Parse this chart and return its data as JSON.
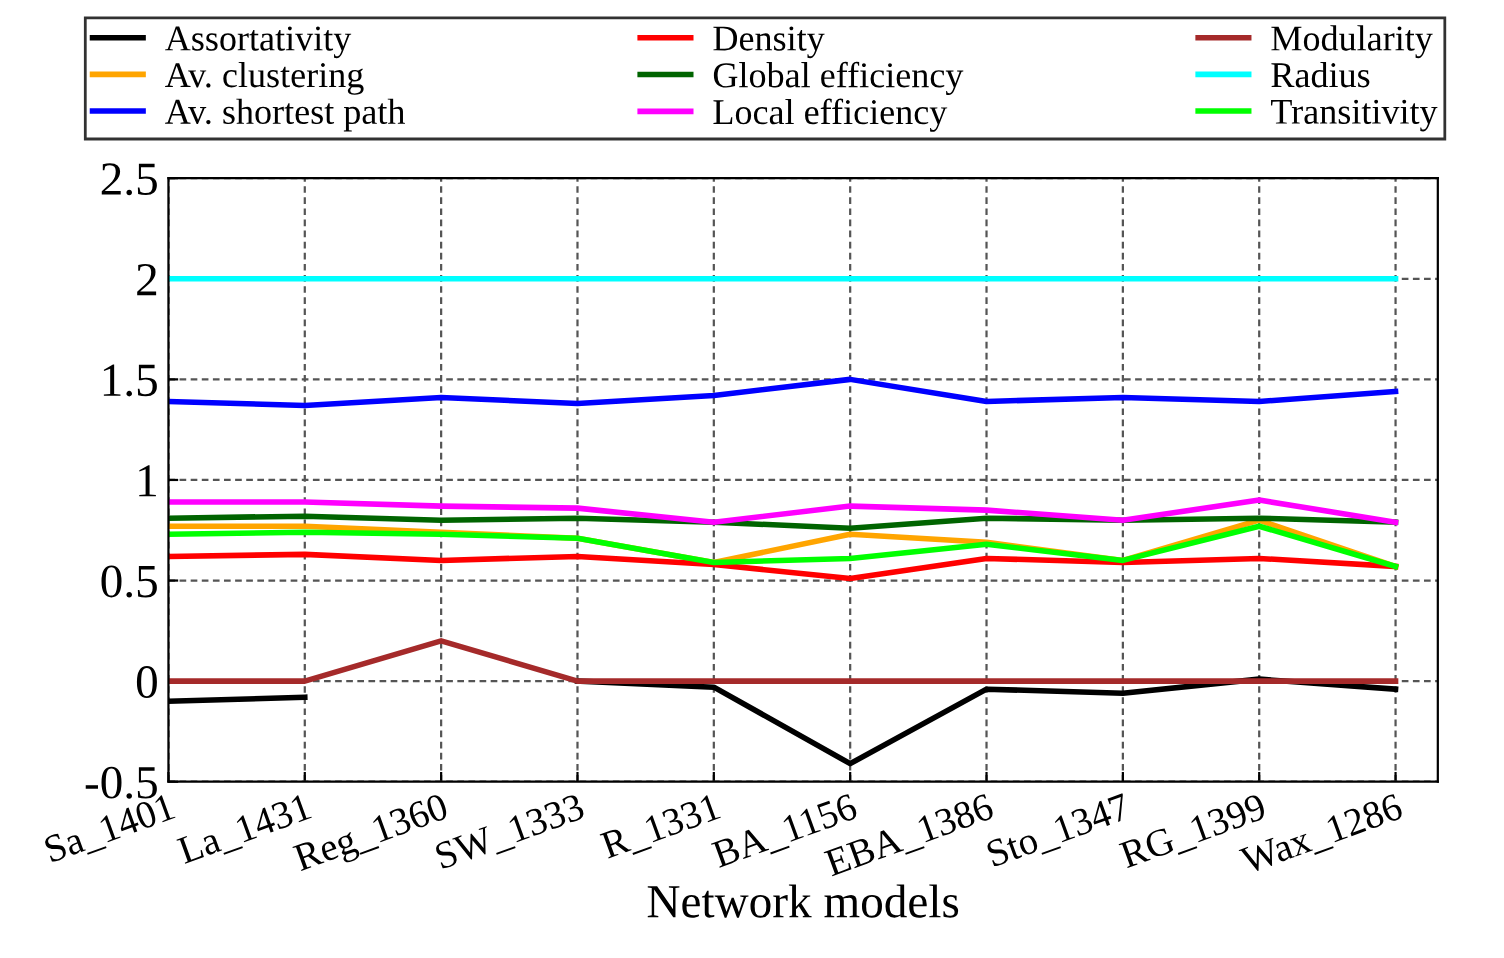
{
  "chart_data": {
    "type": "line",
    "xlabel": "Network models",
    "categories": [
      "Sa_1401",
      "La_1431",
      "Reg_1360",
      "SW_1333",
      "R_1331",
      "BA_1156",
      "EBA_1386",
      "Sto_1347",
      "RG_1399",
      "Wax_1286"
    ],
    "series": [
      {
        "name": "Assortativity",
        "color": "#000000",
        "values": [
          -0.1,
          -0.08,
          null,
          0.0,
          -0.03,
          -0.41,
          -0.04,
          -0.06,
          0.01,
          -0.04
        ]
      },
      {
        "name": "Av. clustering",
        "color": "#ffa500",
        "values": [
          0.77,
          0.77,
          0.74,
          0.71,
          0.59,
          0.73,
          0.69,
          0.6,
          0.8,
          0.57
        ]
      },
      {
        "name": "Av. shortest path",
        "color": "#0000ff",
        "values": [
          1.39,
          1.37,
          1.41,
          1.38,
          1.42,
          1.5,
          1.39,
          1.41,
          1.39,
          1.44
        ]
      },
      {
        "name": "Density",
        "color": "#ff0000",
        "values": [
          0.62,
          0.63,
          0.6,
          0.62,
          0.58,
          0.51,
          0.61,
          0.59,
          0.61,
          0.57
        ]
      },
      {
        "name": "Global efficiency",
        "color": "#006400",
        "values": [
          0.81,
          0.82,
          0.8,
          0.81,
          0.79,
          0.76,
          0.81,
          0.8,
          0.81,
          0.79
        ]
      },
      {
        "name": "Local efficiency",
        "color": "#ff00ff",
        "values": [
          0.89,
          0.89,
          0.87,
          0.86,
          0.79,
          0.87,
          0.85,
          0.8,
          0.9,
          0.79
        ]
      },
      {
        "name": "Modularity",
        "color": "#a52a2a",
        "values": [
          0.0,
          0.0,
          0.2,
          0.0,
          0.0,
          0.0,
          0.0,
          0.0,
          0.0,
          0.0
        ]
      },
      {
        "name": "Radius",
        "color": "#00ffff",
        "values": [
          2,
          2,
          2,
          2,
          2,
          2,
          2,
          2,
          2,
          2
        ]
      },
      {
        "name": "Transitivity",
        "color": "#00ff00",
        "values": [
          0.73,
          0.74,
          0.73,
          0.71,
          0.59,
          0.61,
          0.68,
          0.6,
          0.77,
          0.57
        ]
      }
    ],
    "ylim": [
      -0.5,
      2.5
    ],
    "yticks": [
      -0.5,
      0,
      0.5,
      1,
      1.5,
      2,
      2.5
    ],
    "grid": true,
    "legend": "top",
    "line_style": "solid",
    "marker": "none"
  }
}
